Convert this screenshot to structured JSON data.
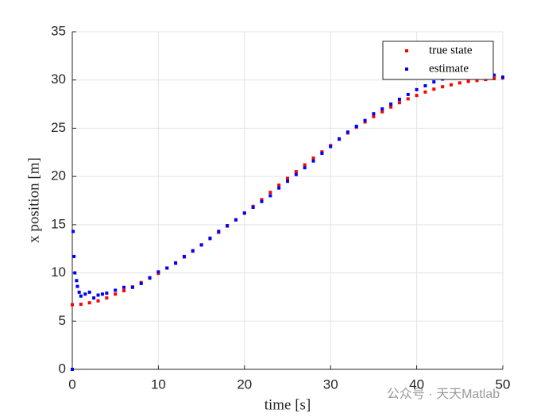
{
  "chart_data": {
    "type": "scatter",
    "xlabel": "time [s]",
    "ylabel": "x position [m]",
    "xlim": [
      0,
      50
    ],
    "ylim": [
      0,
      35
    ],
    "xticks": [
      0,
      10,
      20,
      30,
      40,
      50
    ],
    "yticks": [
      0,
      5,
      10,
      15,
      20,
      25,
      30,
      35
    ],
    "grid": true,
    "legend": "northeast",
    "watermark": "公众号 · 天天Matlab",
    "series": [
      {
        "name": "true state",
        "color": "#ff0000",
        "x": [
          0,
          1,
          2,
          3,
          4,
          5,
          6,
          7,
          8,
          9,
          10,
          11,
          12,
          13,
          14,
          15,
          16,
          17,
          18,
          19,
          20,
          21,
          22,
          23,
          24,
          25,
          26,
          27,
          28,
          29,
          30,
          31,
          32,
          33,
          34,
          35,
          36,
          37,
          38,
          39,
          40,
          41,
          42,
          43,
          44,
          45,
          46,
          47,
          48,
          49,
          50
        ],
        "values": [
          6.7,
          6.75,
          6.9,
          7.1,
          7.4,
          7.8,
          8.15,
          8.55,
          9.0,
          9.45,
          9.95,
          10.5,
          11.05,
          11.65,
          12.25,
          12.9,
          13.55,
          14.2,
          14.85,
          15.5,
          16.2,
          16.9,
          17.6,
          18.35,
          19.1,
          19.8,
          20.5,
          21.2,
          21.9,
          22.55,
          23.2,
          23.85,
          24.5,
          25.1,
          25.65,
          26.2,
          26.7,
          27.2,
          27.65,
          28.05,
          28.4,
          28.75,
          29.05,
          29.3,
          29.5,
          29.7,
          29.85,
          29.95,
          30.05,
          30.15,
          30.2
        ]
      },
      {
        "name": "estimate",
        "color": "#0000ff",
        "x": [
          0,
          0.1,
          0.2,
          0.3,
          0.5,
          0.6,
          0.8,
          1,
          1.5,
          2,
          2.5,
          3,
          3.5,
          4,
          5,
          6,
          7,
          8,
          9,
          10,
          11,
          12,
          13,
          14,
          15,
          16,
          17,
          18,
          19,
          20,
          21,
          22,
          23,
          24,
          25,
          26,
          27,
          28,
          29,
          30,
          31,
          32,
          33,
          34,
          35,
          36,
          37,
          38,
          39,
          40,
          41,
          42,
          43,
          44,
          45,
          46,
          47,
          48,
          49,
          50
        ],
        "values": [
          0,
          14.3,
          11.7,
          10.0,
          9.2,
          8.6,
          8.0,
          7.6,
          7.8,
          8.0,
          7.4,
          7.7,
          7.8,
          7.9,
          8.2,
          8.5,
          8.5,
          8.9,
          9.5,
          10.1,
          10.5,
          11.0,
          11.7,
          12.3,
          12.9,
          13.6,
          14.3,
          14.9,
          15.5,
          16.2,
          16.8,
          17.4,
          18.0,
          18.8,
          19.5,
          20.2,
          20.9,
          21.6,
          22.4,
          23.1,
          23.9,
          24.6,
          25.2,
          25.8,
          26.5,
          27.0,
          27.5,
          28.0,
          28.5,
          29.0,
          29.4,
          29.8,
          30.1,
          30.3,
          30.5,
          30.5,
          30.5,
          30.6,
          30.5,
          30.3
        ]
      }
    ]
  }
}
